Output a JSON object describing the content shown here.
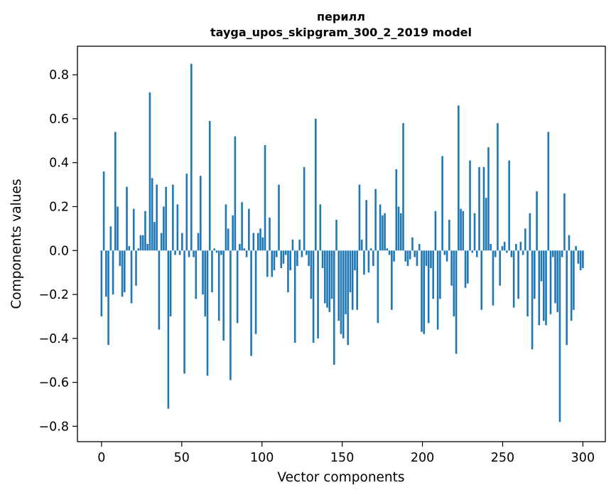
{
  "chart_data": {
    "type": "bar",
    "title_line1": "перилл",
    "title_line2": "tayga_upos_skipgram_300_2_2019 model",
    "xlabel": "Vector components",
    "ylabel": "Components values",
    "xlim": [
      -15,
      314
    ],
    "ylim": [
      -0.87,
      0.93
    ],
    "xticks": [
      0,
      50,
      100,
      150,
      200,
      250,
      300
    ],
    "xtick_labels": [
      "0",
      "50",
      "100",
      "150",
      "200",
      "250",
      "300"
    ],
    "yticks": [
      -0.8,
      -0.6,
      -0.4,
      -0.2,
      0.0,
      0.2,
      0.4,
      0.6,
      0.8
    ],
    "ytick_labels": [
      "−0.8",
      "−0.6",
      "−0.4",
      "−0.2",
      "0.0",
      "0.2",
      "0.4",
      "0.6",
      "0.8"
    ],
    "bar_color": "#1f77b4",
    "grid": false,
    "values": [
      -0.3,
      0.36,
      -0.21,
      -0.43,
      0.11,
      -0.2,
      0.54,
      0.2,
      -0.07,
      -0.21,
      -0.19,
      0.29,
      0.02,
      -0.24,
      0.19,
      -0.16,
      0.01,
      0.07,
      0.07,
      0.18,
      0.03,
      0.72,
      0.33,
      0.13,
      0.3,
      -0.36,
      0.08,
      0.2,
      0.29,
      -0.72,
      -0.3,
      0.3,
      -0.02,
      0.21,
      -0.02,
      0.08,
      -0.56,
      0.35,
      -0.03,
      0.85,
      -0.03,
      -0.22,
      0.08,
      0.34,
      -0.2,
      -0.3,
      -0.57,
      0.59,
      -0.19,
      0.01,
      -0.01,
      -0.32,
      -0.02,
      -0.41,
      0.21,
      0.1,
      -0.59,
      0.16,
      0.52,
      -0.33,
      0.03,
      0.22,
      0.01,
      -0.03,
      0.19,
      -0.48,
      0.08,
      -0.38,
      0.08,
      0.1,
      0.06,
      0.48,
      -0.12,
      0.15,
      -0.12,
      -0.09,
      -0.03,
      0.3,
      -0.08,
      -0.06,
      -0.02,
      -0.19,
      -0.09,
      0.05,
      -0.42,
      -0.07,
      0.05,
      -0.03,
      0.38,
      -0.02,
      -0.07,
      -0.22,
      -0.42,
      0.6,
      -0.4,
      0.21,
      -0.08,
      -0.24,
      -0.26,
      -0.28,
      -0.22,
      -0.52,
      0.14,
      -0.32,
      -0.38,
      -0.4,
      -0.29,
      -0.43,
      -0.19,
      -0.27,
      -0.09,
      -0.27,
      0.3,
      0.05,
      -0.11,
      0.23,
      -0.1,
      0.01,
      -0.07,
      0.28,
      -0.33,
      0.21,
      0.16,
      0.17,
      0.01,
      -0.02,
      -0.27,
      -0.05,
      0.37,
      0.2,
      0.17,
      0.58,
      -0.05,
      -0.07,
      -0.04,
      0.06,
      -0.03,
      -0.07,
      0.03,
      -0.37,
      -0.38,
      -0.07,
      -0.33,
      -0.08,
      -0.22,
      0.18,
      -0.36,
      -0.22,
      0.43,
      -0.02,
      -0.05,
      0.14,
      -0.16,
      -0.3,
      -0.47,
      0.66,
      0.19,
      0.18,
      -0.17,
      -0.15,
      0.41,
      -0.01,
      0.17,
      -0.03,
      0.38,
      -0.27,
      0.38,
      0.24,
      0.47,
      0.03,
      -0.25,
      -0.03,
      0.58,
      -0.16,
      0.02,
      0.04,
      -0.01,
      0.41,
      -0.03,
      -0.26,
      0.03,
      -0.22,
      0.04,
      -0.02,
      0.1,
      -0.3,
      0.17,
      -0.45,
      -0.22,
      0.27,
      -0.34,
      -0.14,
      -0.32,
      -0.34,
      0.54,
      -0.29,
      -0.03,
      -0.24,
      -0.28,
      -0.78,
      -0.03,
      0.26,
      -0.43,
      0.07,
      -0.32,
      -0.27,
      0.02,
      -0.06,
      -0.09,
      -0.08
    ]
  }
}
